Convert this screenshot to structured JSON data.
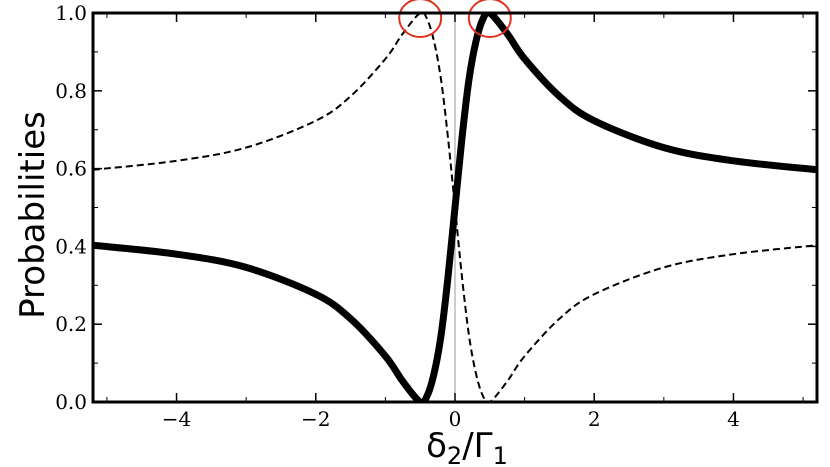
{
  "chart_data": {
    "type": "line",
    "title": "",
    "xlabel": {
      "base": "δ",
      "sub1": "2",
      "slash": "/",
      "base2": "Γ",
      "sub2": "1"
    },
    "ylabel": "Probabilities",
    "xlim": [
      -5.2,
      5.2
    ],
    "ylim": [
      0.0,
      1.0
    ],
    "x_ticks": [
      -4,
      -2,
      0,
      2,
      4
    ],
    "x_tick_labels": [
      "−4",
      "−2",
      "0",
      "2",
      "4"
    ],
    "y_ticks": [
      0.0,
      0.2,
      0.4,
      0.6,
      0.8,
      1.0
    ],
    "y_tick_labels": [
      "0.0",
      "0.2",
      "0.4",
      "0.6",
      "0.8",
      "1.0"
    ],
    "grid": false,
    "vertical_reference_line_x": 0,
    "series": [
      {
        "style": "solid-thick",
        "color": "#000000",
        "x": [
          -5.2,
          -4.0,
          -3.0,
          -2.0,
          -1.5,
          -1.0,
          -0.75,
          -0.5,
          -0.4,
          -0.3,
          -0.2,
          -0.1,
          0.0,
          0.1,
          0.2,
          0.3,
          0.4,
          0.5,
          0.75,
          1.0,
          1.5,
          2.0,
          3.0,
          4.0,
          5.2
        ],
        "y": [
          0.403,
          0.38,
          0.346,
          0.277,
          0.214,
          0.118,
          0.053,
          0.0,
          0.016,
          0.074,
          0.172,
          0.322,
          0.5,
          0.678,
          0.828,
          0.926,
          0.984,
          1.0,
          0.947,
          0.882,
          0.786,
          0.723,
          0.654,
          0.62,
          0.597
        ]
      },
      {
        "style": "dashed",
        "color": "#000000",
        "x": [
          -5.2,
          -4.0,
          -3.0,
          -2.0,
          -1.5,
          -1.0,
          -0.75,
          -0.5,
          -0.4,
          -0.3,
          -0.2,
          -0.1,
          0.0,
          0.1,
          0.2,
          0.3,
          0.4,
          0.5,
          0.75,
          1.0,
          1.5,
          2.0,
          3.0,
          4.0,
          5.2
        ],
        "y": [
          0.597,
          0.62,
          0.654,
          0.723,
          0.786,
          0.882,
          0.947,
          1.0,
          0.984,
          0.926,
          0.828,
          0.678,
          0.5,
          0.322,
          0.172,
          0.074,
          0.016,
          0.0,
          0.053,
          0.118,
          0.214,
          0.277,
          0.346,
          0.38,
          0.403
        ]
      }
    ],
    "annotations": [
      {
        "type": "circle",
        "color": "#e0301e",
        "x": -0.5,
        "y": 1.0
      },
      {
        "type": "circle",
        "color": "#e0301e",
        "x": 0.5,
        "y": 1.0
      }
    ]
  }
}
